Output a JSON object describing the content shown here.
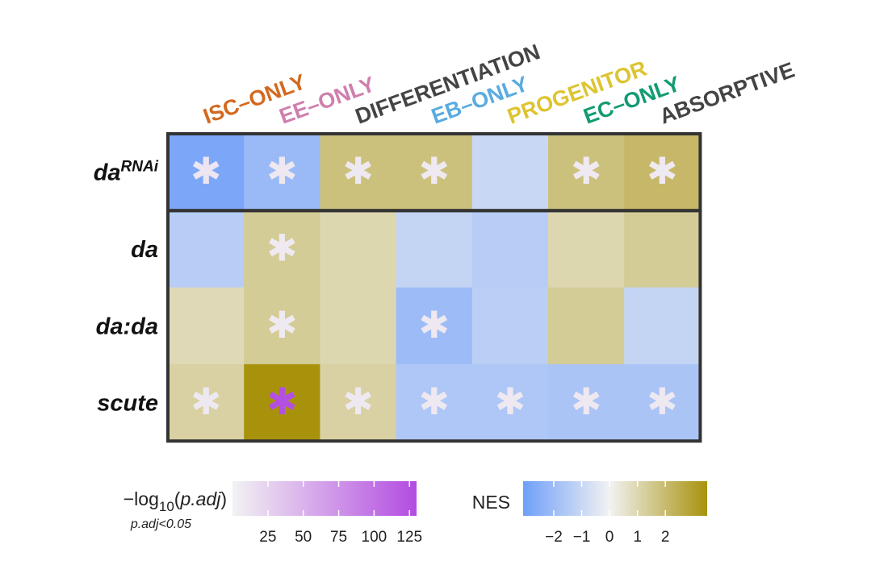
{
  "chart_data": {
    "type": "heatmap",
    "columns": [
      {
        "label": "ISC–ONLY",
        "color": "#d3691f"
      },
      {
        "label": "EE–ONLY",
        "color": "#cf7fad"
      },
      {
        "label": "DIFFERENTIATION",
        "color": "#444444"
      },
      {
        "label": "EB–ONLY",
        "color": "#59abe0"
      },
      {
        "label": "PROGENITOR",
        "color": "#ddc430"
      },
      {
        "label": "EC–ONLY",
        "color": "#129b72"
      },
      {
        "label": "ABSORPTIVE",
        "color": "#444444"
      }
    ],
    "rows": [
      {
        "label": "da",
        "superscript": "RNAi",
        "nes": [
          -2.8,
          -2.1,
          1.8,
          1.8,
          -1.0,
          1.8,
          2.1
        ],
        "neglog10_padj": [
          10,
          8,
          8,
          6,
          null,
          6,
          6
        ]
      },
      {
        "label": "da",
        "superscript": "",
        "nes": [
          -1.4,
          1.4,
          1.0,
          -1.1,
          -1.4,
          1.0,
          1.4
        ],
        "neglog10_padj": [
          null,
          6,
          null,
          null,
          null,
          null,
          null
        ]
      },
      {
        "label": "da:da",
        "superscript": "",
        "nes": [
          0.9,
          1.4,
          1.0,
          -2.0,
          -1.3,
          1.4,
          -1.1
        ],
        "neglog10_padj": [
          null,
          6,
          null,
          8,
          null,
          null,
          null
        ]
      },
      {
        "label": "scute",
        "superscript": "",
        "nes": [
          1.2,
          3.5,
          1.2,
          -1.6,
          -1.6,
          -1.7,
          -1.7
        ],
        "neglog10_padj": [
          8,
          127,
          8,
          8,
          8,
          8,
          8
        ]
      }
    ],
    "separator_after_row": 0,
    "legend_padj": {
      "title_prefix": "−log",
      "title_sub": "10",
      "title_paren_open": "(",
      "title_var": "p.adj",
      "title_paren_close": ")",
      "subtitle": "p.adj<0.05",
      "range": [
        0,
        130
      ],
      "ticks": [
        25,
        50,
        75,
        100,
        125
      ],
      "colors": [
        "#f2f2f2",
        "#b34ce1"
      ]
    },
    "legend_nes": {
      "title": "NES",
      "range": [
        -3.1,
        3.5
      ],
      "ticks": [
        -2,
        -1,
        0,
        1,
        2
      ],
      "colors": [
        "#6f9ff9",
        "#f2f2f2",
        "#a8920c"
      ]
    },
    "star_glyph": "✱"
  }
}
